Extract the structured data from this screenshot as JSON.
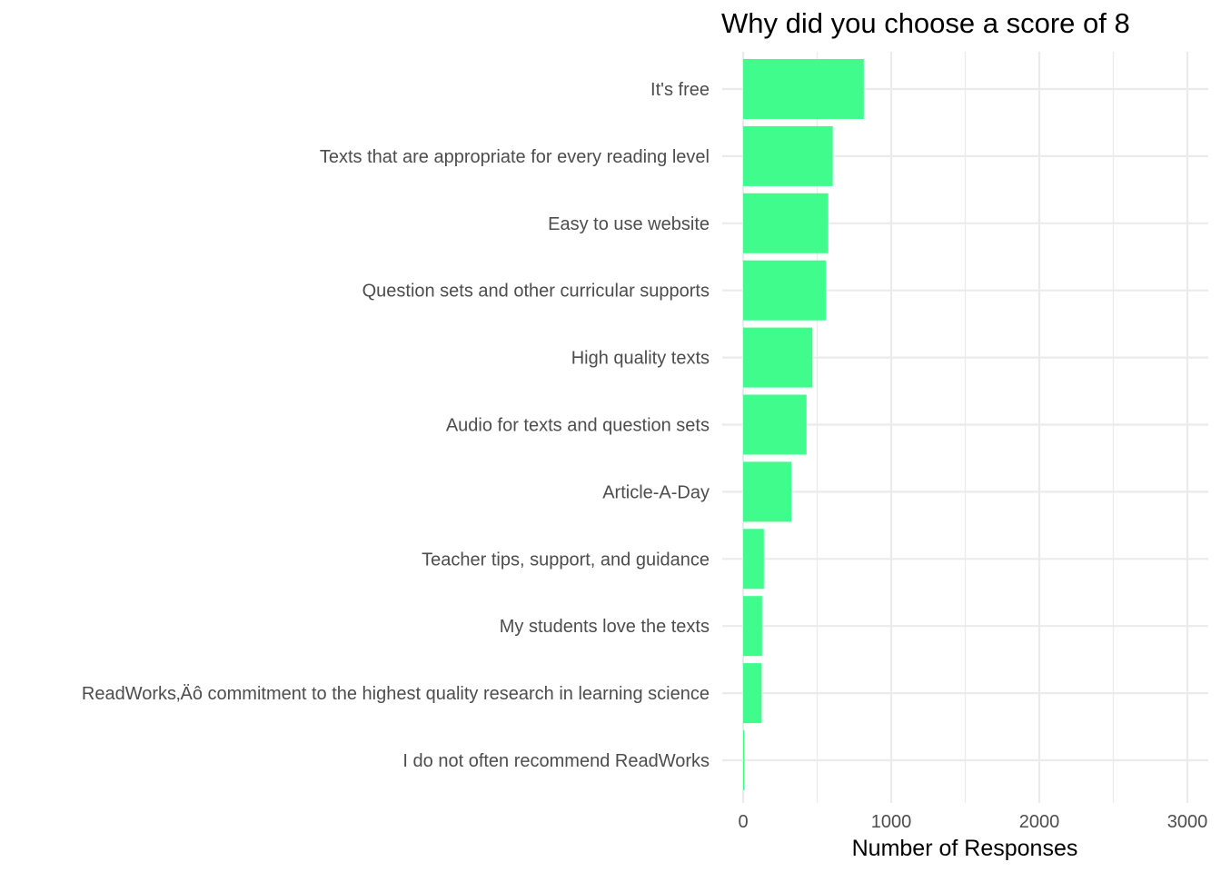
{
  "chart_data": {
    "type": "bar",
    "orientation": "horizontal",
    "title": "Why did you choose a score of 8",
    "xlabel": "Number of Responses",
    "ylabel": "",
    "categories": [
      "It's free",
      "Texts that are appropriate for every reading level",
      "Easy to use website",
      "Question sets and other curricular supports",
      "High quality texts",
      "Audio for texts and question sets",
      "Article-A-Day",
      "Teacher tips, support, and guidance",
      "My students love the texts",
      "ReadWorks‚Äô commitment to the highest quality research in learning science",
      "I do not often recommend ReadWorks"
    ],
    "values": [
      815,
      605,
      575,
      558,
      468,
      428,
      325,
      140,
      128,
      125,
      8
    ],
    "xlim": [
      0,
      3100
    ],
    "xticks": [
      0,
      1000,
      2000,
      3000
    ],
    "xtick_labels": [
      "0",
      "1000",
      "2000",
      "3000"
    ],
    "minor_xticks": [
      500,
      1500,
      2500
    ],
    "grid": true,
    "legend": "none",
    "bar_color": "#3BFC8A",
    "grid_color": "#EBEBEB",
    "text_color": "#4D4D4D"
  }
}
